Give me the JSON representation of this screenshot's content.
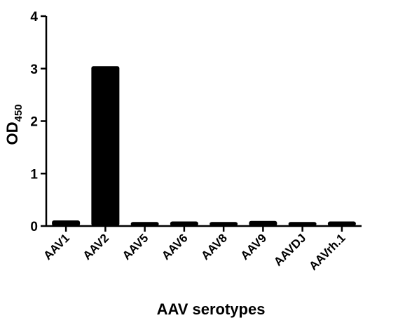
{
  "chart_data": {
    "type": "bar",
    "categories": [
      "AAV1",
      "AAV2",
      "AAV5",
      "AAV6",
      "AAV8",
      "AAV9",
      "AAVDJ",
      "AAVrh.1"
    ],
    "values": [
      0.08,
      3.02,
      0.05,
      0.06,
      0.05,
      0.07,
      0.05,
      0.06
    ],
    "xlabel": "AAV serotypes",
    "ylabel": "OD",
    "ylabel_subscript": "450",
    "ylim": [
      0,
      4
    ],
    "yticks": [
      "0",
      "1",
      "2",
      "3",
      "4"
    ],
    "grid": false,
    "legend": "none",
    "bar_color": "#000000"
  }
}
